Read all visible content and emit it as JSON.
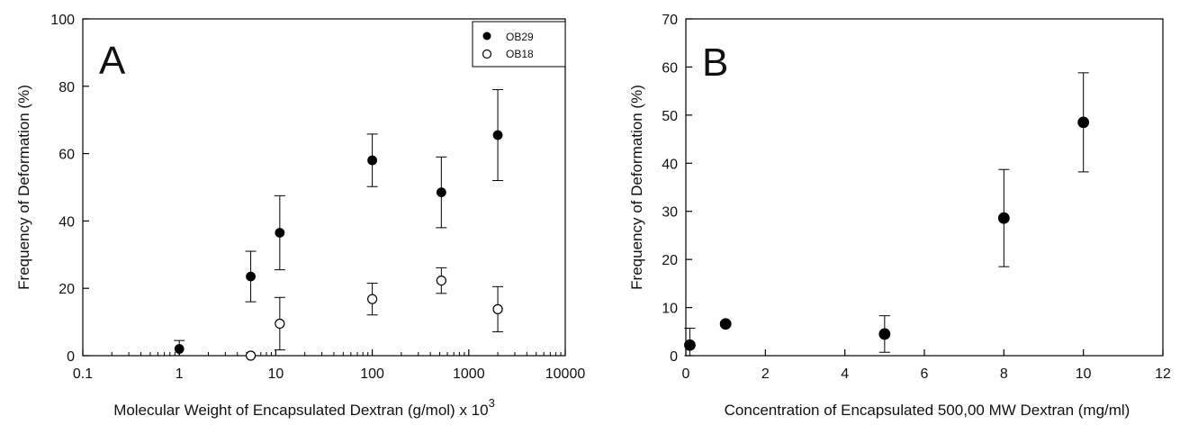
{
  "chart_data": [
    {
      "type": "scatter",
      "panel_label": "A",
      "xscale": "log",
      "xlim": [
        0.1,
        10000
      ],
      "ylim": [
        0,
        100
      ],
      "x_ticks": [
        0.1,
        1,
        10,
        100,
        1000,
        10000
      ],
      "x_tick_labels": [
        "0.1",
        "1",
        "10",
        "100",
        "1000",
        "10000"
      ],
      "y_ticks": [
        0,
        20,
        40,
        60,
        80,
        100
      ],
      "y_tick_labels": [
        "0",
        "20",
        "40",
        "60",
        "80",
        "100"
      ],
      "xlabel": "Molecular Weight of Encapsulated Dextran (g/mol) x 10",
      "xlabel_superscript": "3",
      "ylabel": "Frequency of Deformation (%)",
      "grid": false,
      "legend_position": "top-right",
      "series": [
        {
          "name": "OB29",
          "marker": "filled-circle",
          "color": "#000000",
          "points": [
            {
              "x": 1,
              "y": 2,
              "err": 2.5
            },
            {
              "x": 5.5,
              "y": 23.5,
              "err": 7.5
            },
            {
              "x": 11,
              "y": 36.5,
              "err": 11
            },
            {
              "x": 100,
              "y": 58,
              "err": 7.8
            },
            {
              "x": 520,
              "y": 48.5,
              "err": 10.5
            },
            {
              "x": 2000,
              "y": 65.5,
              "err": 13.5
            }
          ]
        },
        {
          "name": "OB18",
          "marker": "open-circle",
          "color": "#000000",
          "points": [
            {
              "x": 5.5,
              "y": 0,
              "err": 0
            },
            {
              "x": 11,
              "y": 9.5,
              "err": 7.8
            },
            {
              "x": 100,
              "y": 16.8,
              "err": 4.7
            },
            {
              "x": 520,
              "y": 22.3,
              "err": 3.8
            },
            {
              "x": 2000,
              "y": 13.8,
              "err": 6.7
            }
          ]
        }
      ]
    },
    {
      "type": "scatter",
      "panel_label": "B",
      "xscale": "linear",
      "xlim": [
        0,
        12
      ],
      "ylim": [
        0,
        70
      ],
      "x_ticks": [
        0,
        2,
        4,
        6,
        8,
        10,
        12
      ],
      "x_tick_labels": [
        "0",
        "2",
        "4",
        "6",
        "8",
        "10",
        "12"
      ],
      "y_ticks": [
        0,
        10,
        20,
        30,
        40,
        50,
        60,
        70
      ],
      "y_tick_labels": [
        "0",
        "10",
        "20",
        "30",
        "40",
        "50",
        "60",
        "70"
      ],
      "xlabel": "Concentration of Encapsulated 500,00 MW Dextran (mg/ml)",
      "ylabel": "Frequency of Deformation (%)",
      "grid": false,
      "series": [
        {
          "marker": "filled-circle",
          "color": "#000000",
          "points": [
            {
              "x": 0.1,
              "y": 2.2,
              "err": 3.5
            },
            {
              "x": 1,
              "y": 6.6,
              "err": 0.4
            },
            {
              "x": 5,
              "y": 4.5,
              "err": 3.8
            },
            {
              "x": 8,
              "y": 28.6,
              "err": 10.1
            },
            {
              "x": 10,
              "y": 48.5,
              "err": 10.3
            }
          ]
        }
      ]
    }
  ]
}
